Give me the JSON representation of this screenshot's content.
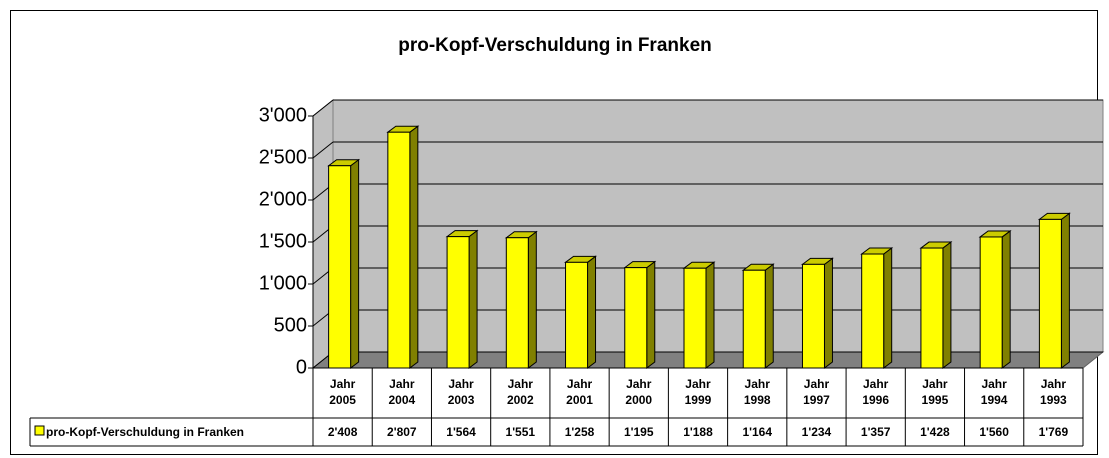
{
  "chart_data": {
    "type": "bar3d",
    "title": "pro-Kopf-Verschuldung in Franken",
    "categories": [
      "Jahr 2005",
      "Jahr 2004",
      "Jahr 2003",
      "Jahr 2002",
      "Jahr 2001",
      "Jahr 2000",
      "Jahr 1999",
      "Jahr 1998",
      "Jahr 1997",
      "Jahr 1996",
      "Jahr 1995",
      "Jahr 1994",
      "Jahr 1993"
    ],
    "series": [
      {
        "name": "pro-Kopf-Verschuldung in Franken",
        "color": "#ffff00",
        "values": [
          2408,
          2807,
          1564,
          1551,
          1258,
          1195,
          1188,
          1164,
          1234,
          1357,
          1428,
          1560,
          1769
        ],
        "value_labels": [
          "2'408",
          "2'807",
          "1'564",
          "1'551",
          "1'258",
          "1'195",
          "1'188",
          "1'164",
          "1'234",
          "1'357",
          "1'428",
          "1'560",
          "1'769"
        ]
      }
    ],
    "ylim": [
      0,
      3000
    ],
    "yticks": [
      0,
      500,
      {
        "value": 1000,
        "label": "1'000"
      },
      {
        "value": 1500,
        "label": "1'500"
      },
      {
        "value": 2000,
        "label": "2'000"
      },
      {
        "value": 2500,
        "label": "2'500"
      },
      {
        "value": 3000,
        "label": "3'000"
      }
    ],
    "grid": true,
    "data_table": true
  }
}
